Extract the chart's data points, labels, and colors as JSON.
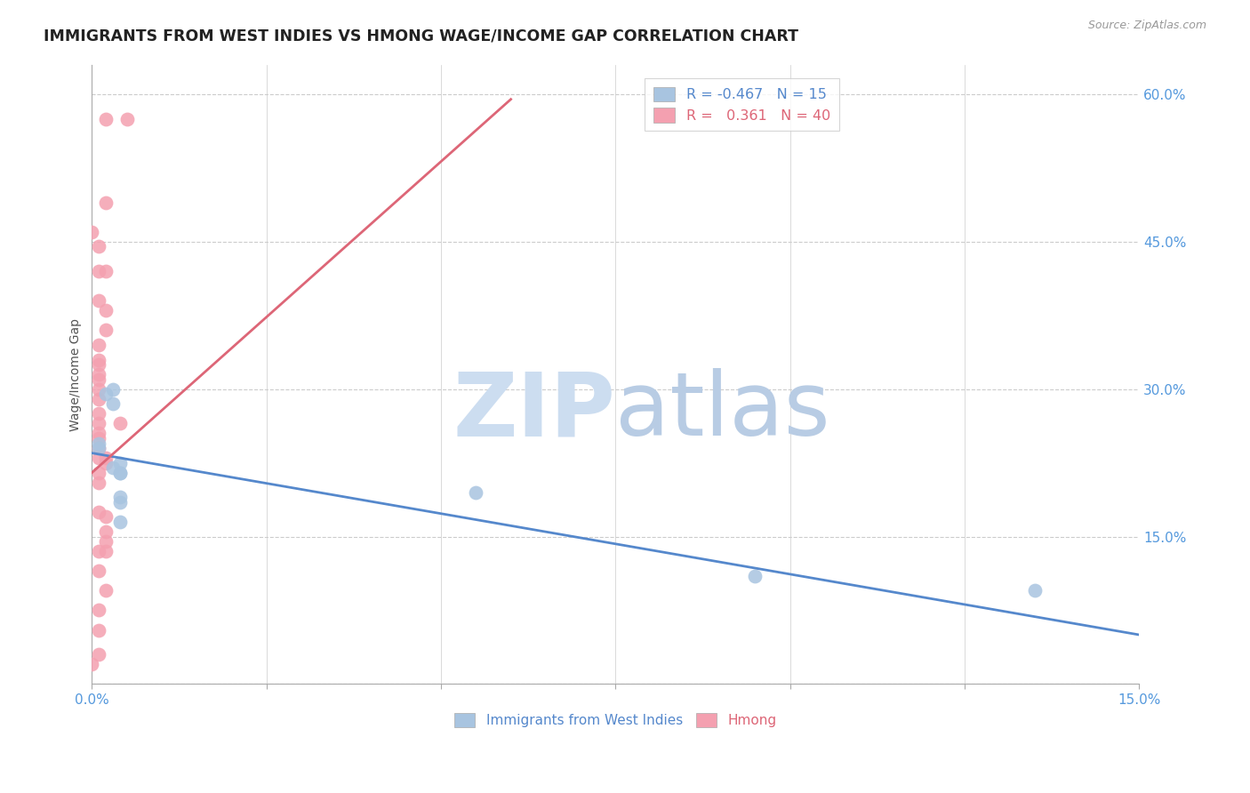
{
  "title": "IMMIGRANTS FROM WEST INDIES VS HMONG WAGE/INCOME GAP CORRELATION CHART",
  "source": "Source: ZipAtlas.com",
  "ylabel": "Wage/Income Gap",
  "yticks": [
    0.0,
    0.15,
    0.3,
    0.45,
    0.6
  ],
  "ytick_labels": [
    "",
    "15.0%",
    "30.0%",
    "45.0%",
    "60.0%"
  ],
  "xlim": [
    0.0,
    0.15
  ],
  "ylim": [
    0.0,
    0.63
  ],
  "legend_blue_R": "-0.467",
  "legend_blue_N": "15",
  "legend_pink_R": "0.361",
  "legend_pink_N": "40",
  "blue_scatter": [
    [
      0.001,
      0.245
    ],
    [
      0.001,
      0.24
    ],
    [
      0.002,
      0.295
    ],
    [
      0.003,
      0.3
    ],
    [
      0.003,
      0.285
    ],
    [
      0.003,
      0.22
    ],
    [
      0.004,
      0.225
    ],
    [
      0.004,
      0.215
    ],
    [
      0.004,
      0.215
    ],
    [
      0.004,
      0.19
    ],
    [
      0.004,
      0.185
    ],
    [
      0.004,
      0.165
    ],
    [
      0.055,
      0.195
    ],
    [
      0.095,
      0.11
    ],
    [
      0.135,
      0.095
    ]
  ],
  "pink_scatter": [
    [
      0.002,
      0.575
    ],
    [
      0.005,
      0.575
    ],
    [
      0.0,
      0.46
    ],
    [
      0.001,
      0.445
    ],
    [
      0.001,
      0.42
    ],
    [
      0.002,
      0.42
    ],
    [
      0.001,
      0.39
    ],
    [
      0.002,
      0.38
    ],
    [
      0.002,
      0.36
    ],
    [
      0.001,
      0.345
    ],
    [
      0.001,
      0.33
    ],
    [
      0.001,
      0.325
    ],
    [
      0.001,
      0.315
    ],
    [
      0.001,
      0.31
    ],
    [
      0.001,
      0.3
    ],
    [
      0.001,
      0.29
    ],
    [
      0.001,
      0.275
    ],
    [
      0.001,
      0.265
    ],
    [
      0.001,
      0.255
    ],
    [
      0.001,
      0.25
    ],
    [
      0.001,
      0.24
    ],
    [
      0.002,
      0.49
    ],
    [
      0.004,
      0.265
    ],
    [
      0.001,
      0.23
    ],
    [
      0.002,
      0.23
    ],
    [
      0.002,
      0.225
    ],
    [
      0.001,
      0.215
    ],
    [
      0.001,
      0.205
    ],
    [
      0.001,
      0.175
    ],
    [
      0.002,
      0.17
    ],
    [
      0.002,
      0.155
    ],
    [
      0.002,
      0.145
    ],
    [
      0.001,
      0.135
    ],
    [
      0.001,
      0.115
    ],
    [
      0.001,
      0.075
    ],
    [
      0.001,
      0.055
    ],
    [
      0.002,
      0.135
    ],
    [
      0.002,
      0.095
    ],
    [
      0.001,
      0.03
    ],
    [
      0.0,
      0.02
    ]
  ],
  "blue_line_x": [
    0.0,
    0.15
  ],
  "blue_line_y": [
    0.235,
    0.05
  ],
  "pink_line_x": [
    0.0,
    0.06
  ],
  "pink_line_y": [
    0.215,
    0.595
  ],
  "background_color": "#ffffff",
  "blue_color": "#a8c4e0",
  "pink_color": "#f4a0b0",
  "blue_line_color": "#5588cc",
  "pink_line_color": "#dd6677",
  "watermark_zip_color": "#ccddf0",
  "watermark_atlas_color": "#b8cce4"
}
